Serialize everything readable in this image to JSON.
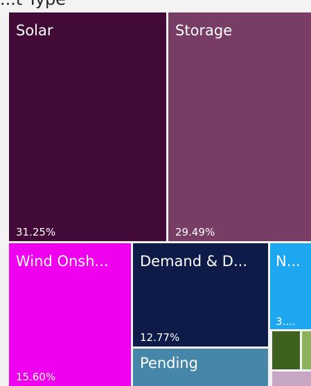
{
  "chart_data": {
    "type": "treemap",
    "title": "...t Type",
    "tiles": [
      {
        "name": "Solar",
        "label": "31.25%",
        "value": 31.25,
        "color": "#420b37"
      },
      {
        "name": "Storage",
        "label": "29.49%",
        "value": 29.49,
        "color": "#783d64"
      },
      {
        "name": "Wind Onsh...",
        "label": "15.60%",
        "value": 15.6,
        "color": "#ef00ee"
      },
      {
        "name": "Demand & D...",
        "label": "12.77%",
        "value": 12.77,
        "color": "#0e1a48"
      },
      {
        "name": "N...",
        "label": "3....",
        "color": "#1ea7f1"
      },
      {
        "name": "Pending",
        "label": "",
        "color": "#4686a8"
      },
      {
        "name": "",
        "label": "",
        "color": "#3f6120"
      },
      {
        "name": "",
        "label": "",
        "color": "#8db15f"
      },
      {
        "name": "",
        "label": "",
        "color": "#c8a7c4"
      }
    ]
  }
}
